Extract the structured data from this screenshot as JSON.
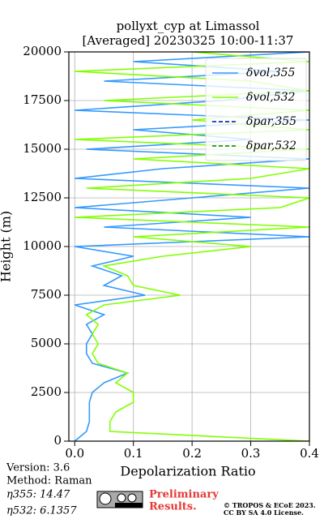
{
  "chart_data": {
    "type": "line",
    "title": "pollyxt_cyp at Limassol",
    "subtitle": "[Averaged] 20230325 10:00-11:37",
    "x_label": "Depolarization Ratio",
    "y_label": "Height (m)",
    "y": [
      0,
      500,
      1000,
      1500,
      2000,
      2500,
      3000,
      3500,
      4000,
      4500,
      5000,
      5500,
      6000,
      6500,
      7000,
      7500,
      8000,
      8500,
      9000,
      9500,
      10000,
      10500,
      11000,
      11500,
      12000,
      12500,
      13000,
      13500,
      14000,
      14500,
      15000,
      15500,
      16000,
      16500,
      17000,
      17500,
      18000,
      18500,
      19000,
      19500,
      20000
    ],
    "series": [
      {
        "name": "δvol,355",
        "color": "#3399ff",
        "dash": "solid",
        "values": [
          0.0,
          0.02,
          0.025,
          0.025,
          0.025,
          0.03,
          0.05,
          0.09,
          0.03,
          0.02,
          0.02,
          0.03,
          0.02,
          0.05,
          0.0,
          0.12,
          0.05,
          0.08,
          0.03,
          0.1,
          0.0,
          0.4,
          0.05,
          0.3,
          0.0,
          0.2,
          0.4,
          0.0,
          0.15,
          0.4,
          0.02,
          0.3,
          0.1,
          0.4,
          0.0,
          0.25,
          0.4,
          0.05,
          0.35,
          0.1,
          0.4
        ]
      },
      {
        "name": "δvol,532",
        "color": "#80ff00",
        "dash": "solid",
        "values": [
          0.4,
          0.06,
          0.06,
          0.07,
          0.1,
          0.1,
          0.07,
          0.09,
          0.04,
          0.03,
          0.04,
          0.03,
          0.04,
          0.02,
          0.05,
          0.18,
          0.1,
          0.09,
          0.05,
          0.15,
          0.3,
          0.1,
          0.4,
          0.0,
          0.35,
          0.4,
          0.02,
          0.3,
          0.4,
          0.1,
          0.4,
          0.0,
          0.4,
          0.2,
          0.4,
          0.05,
          0.4,
          0.3,
          0.0,
          0.4,
          0.2
        ]
      },
      {
        "name": "δpar,355",
        "color": "#0000cc",
        "dash": "dashed",
        "values": [
          null,
          null,
          null,
          null,
          null,
          null,
          null,
          null,
          null,
          null,
          null,
          null,
          null,
          null,
          null,
          null,
          null,
          null,
          null,
          null,
          null,
          null,
          null,
          null,
          null,
          null,
          null,
          null,
          null,
          null,
          null,
          null,
          null,
          null,
          null,
          null,
          null,
          null,
          null,
          null,
          null
        ]
      },
      {
        "name": "δpar,532",
        "color": "#008000",
        "dash": "dashed",
        "values": [
          null,
          null,
          null,
          null,
          null,
          null,
          null,
          null,
          null,
          null,
          null,
          null,
          null,
          null,
          null,
          null,
          null,
          null,
          null,
          null,
          null,
          null,
          null,
          null,
          null,
          null,
          null,
          null,
          null,
          null,
          null,
          null,
          null,
          null,
          null,
          null,
          null,
          null,
          null,
          null,
          null
        ]
      }
    ],
    "xlim": [
      -0.01,
      0.4
    ],
    "xticks": [
      {
        "value": 0,
        "label": "0.0"
      },
      0.1,
      0.2,
      0.3,
      0.4
    ],
    "ylim": [
      0,
      20000
    ],
    "yticks": [
      0,
      2500,
      5000,
      7500,
      10000,
      12500,
      15000,
      17500,
      20000
    ],
    "grid": true,
    "legend_position": "upper right"
  },
  "footer": {
    "version": "Version: 3.6",
    "method": "Method: Raman",
    "eta355": "η355:  14.47",
    "eta532": "η532: 6.1357",
    "notice": [
      "Preliminary",
      "Results."
    ],
    "copyright": [
      "© TROPOS & ECoE 2023.",
      "CC BY SA 4.0 License."
    ]
  }
}
